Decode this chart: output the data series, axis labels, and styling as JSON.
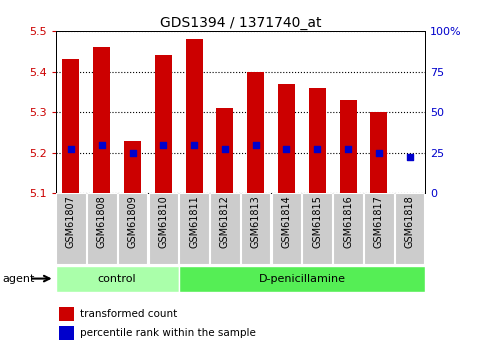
{
  "title": "GDS1394 / 1371740_at",
  "samples": [
    "GSM61807",
    "GSM61808",
    "GSM61809",
    "GSM61810",
    "GSM61811",
    "GSM61812",
    "GSM61813",
    "GSM61814",
    "GSM61815",
    "GSM61816",
    "GSM61817",
    "GSM61818"
  ],
  "bar_top": [
    5.43,
    5.46,
    5.23,
    5.44,
    5.48,
    5.31,
    5.4,
    5.37,
    5.36,
    5.33,
    5.3,
    5.1
  ],
  "bar_bottom": [
    5.1,
    5.1,
    5.1,
    5.1,
    5.1,
    5.1,
    5.1,
    5.1,
    5.1,
    5.1,
    5.1,
    5.1
  ],
  "percentile": [
    5.21,
    5.22,
    5.2,
    5.22,
    5.22,
    5.21,
    5.22,
    5.21,
    5.21,
    5.21,
    5.2,
    5.19
  ],
  "groups": [
    {
      "label": "control",
      "start": 0,
      "end": 4,
      "color": "#aaffaa"
    },
    {
      "label": "D-penicillamine",
      "start": 4,
      "end": 12,
      "color": "#55ee55"
    }
  ],
  "ylim": [
    5.1,
    5.5
  ],
  "y_ticks": [
    5.1,
    5.2,
    5.3,
    5.4,
    5.5
  ],
  "right_ticks": [
    0,
    25,
    50,
    75,
    100
  ],
  "bar_color": "#cc0000",
  "dot_color": "#0000cc",
  "ytick_color": "#cc0000",
  "right_tick_color": "#0000cc",
  "legend_bar_label": "transformed count",
  "legend_dot_label": "percentile rank within the sample",
  "agent_label": "agent"
}
